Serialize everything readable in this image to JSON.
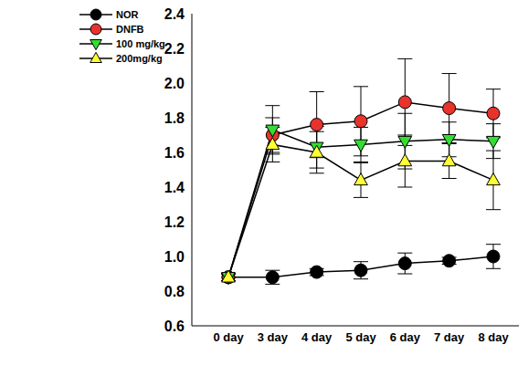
{
  "chart_data": {
    "type": "line",
    "categories": [
      "0 day",
      "3 day",
      "4 day",
      "5 day",
      "6 day",
      "7 day",
      "8 day"
    ],
    "series": [
      {
        "name": "NOR",
        "color": "#000000",
        "marker": "circle",
        "values": [
          0.88,
          0.88,
          0.91,
          0.92,
          0.96,
          0.975,
          1.0
        ],
        "errors": [
          0.02,
          0.04,
          0.02,
          0.05,
          0.06,
          0.02,
          0.07
        ]
      },
      {
        "name": "DNFB",
        "color": "#e8322c",
        "marker": "circle",
        "values": [
          0.88,
          1.7,
          1.76,
          1.78,
          1.89,
          1.855,
          1.825
        ],
        "errors": [
          0.02,
          0.1,
          0.19,
          0.2,
          0.25,
          0.2,
          0.14
        ]
      },
      {
        "name": "100 mg/kg",
        "color": "#33dd33",
        "marker": "triangle-down",
        "values": [
          0.88,
          1.73,
          1.63,
          1.645,
          1.665,
          1.675,
          1.665
        ],
        "errors": [
          0.02,
          0.14,
          0.12,
          0.1,
          0.16,
          0.1,
          0.1
        ]
      },
      {
        "name": "200mg/kg",
        "color": "#ffff33",
        "marker": "triangle",
        "values": [
          0.88,
          1.645,
          1.6,
          1.44,
          1.55,
          1.55,
          1.44
        ],
        "errors": [
          0.02,
          0.1,
          0.12,
          0.1,
          0.15,
          0.1,
          0.17
        ]
      }
    ],
    "ylim": [
      0.6,
      2.4
    ],
    "yticks": [
      0.6,
      0.8,
      {
        "value": 1,
        "label": "1.0"
      },
      1.2,
      1.4,
      1.6,
      1.8,
      {
        "value": 2,
        "label": "2.0"
      },
      2.2,
      2.4
    ],
    "legend": "upper left"
  }
}
